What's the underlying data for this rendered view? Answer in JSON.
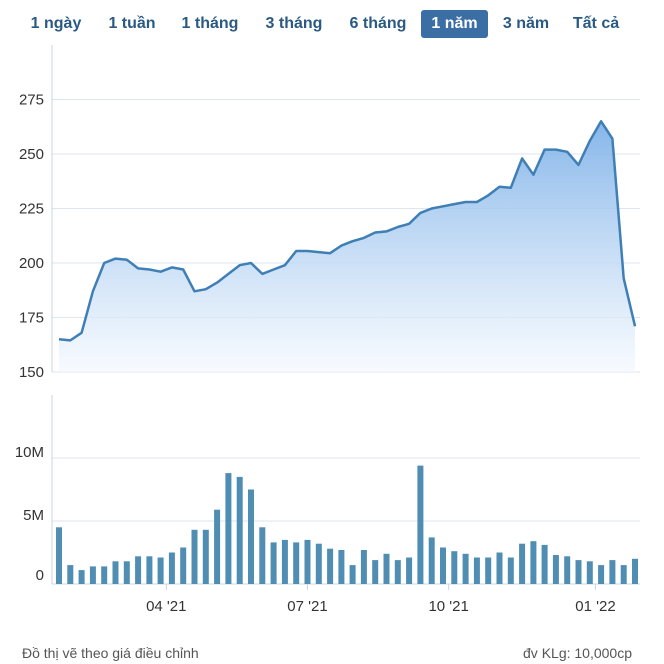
{
  "range_tabs": [
    {
      "label": "1 ngày",
      "active": false
    },
    {
      "label": "1 tuần",
      "active": false
    },
    {
      "label": "1 tháng",
      "active": false
    },
    {
      "label": "3 tháng",
      "active": false
    },
    {
      "label": "6 tháng",
      "active": false
    },
    {
      "label": "1 năm",
      "active": true
    },
    {
      "label": "3 năm",
      "active": false
    },
    {
      "label": "Tất cả",
      "active": false
    }
  ],
  "colors": {
    "line": "#3f7fb5",
    "area_top": "#7fb2e8",
    "area_bottom": "#f3f8fe",
    "bar": "#4f8db2",
    "active_tab": "#3a6ea5",
    "tab_text": "#2a5a84",
    "grid": "#dde6f0",
    "axis_text": "#333333"
  },
  "chart_data": [
    {
      "type": "area",
      "name": "price",
      "ylim": [
        150,
        300
      ],
      "yticks": [
        150,
        175,
        200,
        225,
        250,
        275
      ],
      "ytick_labels": [
        "150",
        "175",
        "200",
        "225",
        "250",
        "275"
      ],
      "grid": true,
      "x_index_range": [
        0,
        51
      ],
      "values": [
        165,
        164.5,
        168,
        187,
        200,
        202,
        201.5,
        197.5,
        197,
        196,
        198,
        197,
        187,
        188,
        191,
        195,
        199,
        200,
        195,
        197,
        199,
        205.5,
        205.5,
        205,
        204.5,
        208,
        210,
        211.5,
        214,
        214.5,
        216.5,
        218,
        223,
        225,
        226,
        227,
        228,
        228,
        231,
        235,
        234.5,
        248,
        240.5,
        252,
        252,
        251,
        245,
        256,
        265,
        257,
        193,
        171
      ]
    },
    {
      "type": "bar",
      "name": "volume",
      "ylim": [
        0,
        15
      ],
      "yticks": [
        0,
        5,
        10
      ],
      "ytick_labels": [
        "0",
        "5M",
        "10M"
      ],
      "grid": true,
      "values": [
        4.5,
        1.5,
        1.1,
        1.4,
        1.4,
        1.8,
        1.8,
        2.2,
        2.2,
        2.1,
        2.5,
        2.9,
        4.3,
        4.3,
        5.9,
        8.8,
        8.5,
        7.5,
        4.5,
        3.3,
        3.5,
        3.3,
        3.5,
        3.2,
        2.8,
        2.7,
        1.5,
        2.7,
        1.9,
        2.4,
        1.9,
        2.1,
        9.4,
        3.7,
        2.9,
        2.6,
        2.4,
        2.1,
        2.1,
        2.5,
        2.1,
        3.2,
        3.4,
        3.1,
        2.3,
        2.2,
        1.9,
        1.8,
        1.5,
        1.9,
        1.5,
        2.0
      ]
    }
  ],
  "x_axis": {
    "labels": [
      {
        "label": "04 '21",
        "index": 9.5
      },
      {
        "label": "07 '21",
        "index": 22
      },
      {
        "label": "10 '21",
        "index": 34.5
      },
      {
        "label": "01 '22",
        "index": 47.5
      }
    ]
  },
  "footer": {
    "left": "Đồ thị vẽ theo giá điều chỉnh",
    "right": "đv KLg: 10,000cp"
  }
}
